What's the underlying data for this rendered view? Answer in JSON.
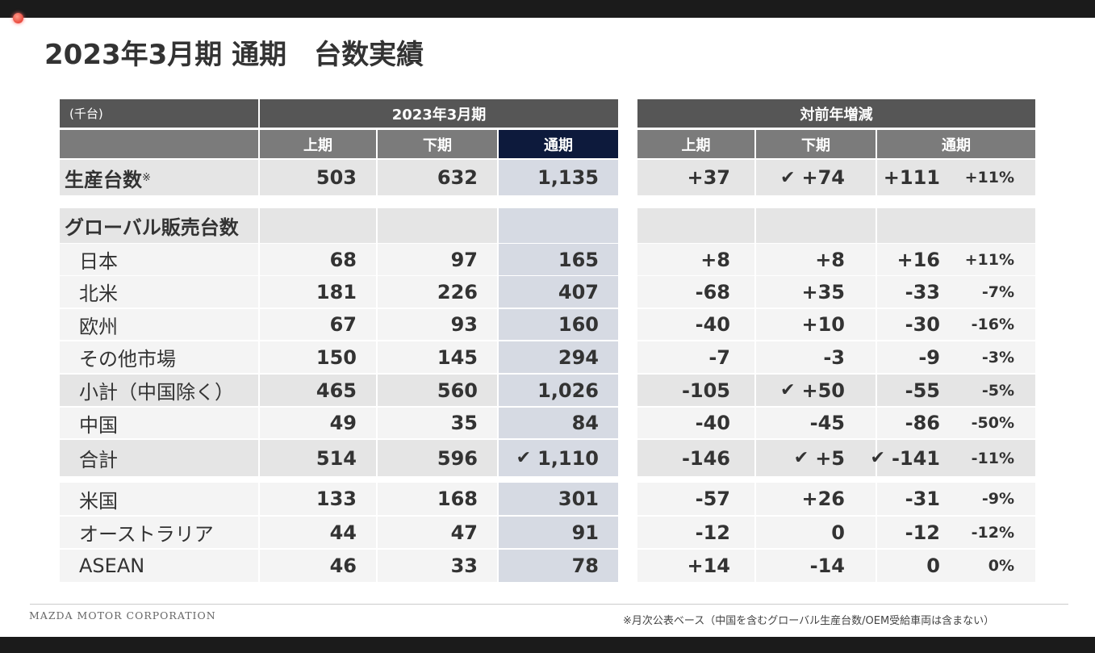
{
  "title": "2023年3月期 通期　台数実績",
  "colors": {
    "header_dark": "#565656",
    "header_mid": "#7b7b7b",
    "header_highlight": "#0d1a3c",
    "full_year_column": "#d6dae3",
    "row_gray": "#e5e5e5",
    "row_light": "#f4f4f4"
  },
  "table": {
    "unit": "(千台)",
    "group_left": "2023年3月期",
    "group_right": "対前年増減",
    "cols_left": [
      "上期",
      "下期",
      "通期"
    ],
    "cols_right": [
      "上期",
      "下期",
      "通期"
    ],
    "check_icon": "✔",
    "rows": [
      {
        "label": "生産台数",
        "sup": "※",
        "main": true,
        "shade": "gray",
        "values": [
          "503",
          "632",
          "1,135"
        ],
        "diff": [
          "+37",
          "+74",
          "+111"
        ],
        "pct": "+11%",
        "checks": {
          "diff1": true
        }
      },
      {
        "label": "グローバル販売台数",
        "main": true,
        "shade": "gray",
        "section": true,
        "values": [
          "",
          "",
          ""
        ],
        "diff": [
          "",
          "",
          ""
        ],
        "pct": ""
      },
      {
        "label": "日本",
        "shade": "light",
        "values": [
          "68",
          "97",
          "165"
        ],
        "diff": [
          "+8",
          "+8",
          "+16"
        ],
        "pct": "+11%"
      },
      {
        "label": "北米",
        "shade": "light",
        "values": [
          "181",
          "226",
          "407"
        ],
        "diff": [
          "-68",
          "+35",
          "-33"
        ],
        "pct": "-7%"
      },
      {
        "label": "欧州",
        "shade": "light",
        "values": [
          "67",
          "93",
          "160"
        ],
        "diff": [
          "-40",
          "+10",
          "-30"
        ],
        "pct": "-16%"
      },
      {
        "label": "その他市場",
        "shade": "light",
        "values": [
          "150",
          "145",
          "294"
        ],
        "diff": [
          "-7",
          "-3",
          "-9"
        ],
        "pct": "-3%"
      },
      {
        "label": "小計（中国除く）",
        "shade": "gray",
        "values": [
          "465",
          "560",
          "1,026"
        ],
        "diff": [
          "-105",
          "+50",
          "-55"
        ],
        "pct": "-5%",
        "checks": {
          "diff1": true
        }
      },
      {
        "label": "中国",
        "shade": "light",
        "values": [
          "49",
          "35",
          "84"
        ],
        "diff": [
          "-40",
          "-45",
          "-86"
        ],
        "pct": "-50%"
      },
      {
        "label": "合計",
        "shade": "gray",
        "values": [
          "514",
          "596",
          "1,110"
        ],
        "diff": [
          "-146",
          "+5",
          "-141"
        ],
        "pct": "-11%",
        "checks": {
          "val2": true,
          "diff1": true,
          "diff2": true
        }
      },
      {
        "label": "米国",
        "shade": "light",
        "values": [
          "133",
          "168",
          "301"
        ],
        "diff": [
          "-57",
          "+26",
          "-31"
        ],
        "pct": "-9%"
      },
      {
        "label": "オーストラリア",
        "shade": "light",
        "values": [
          "44",
          "47",
          "91"
        ],
        "diff": [
          "-12",
          "0",
          "-12"
        ],
        "pct": "-12%"
      },
      {
        "label": "ASEAN",
        "shade": "light",
        "values": [
          "46",
          "33",
          "78"
        ],
        "diff": [
          "+14",
          "-14",
          "0"
        ],
        "pct": "0%"
      }
    ]
  },
  "footer": {
    "company": "MAZDA MOTOR CORPORATION",
    "note": "※月次公表ベース（中国を含むグローバル生産台数/OEM受給車両は含まない）"
  }
}
